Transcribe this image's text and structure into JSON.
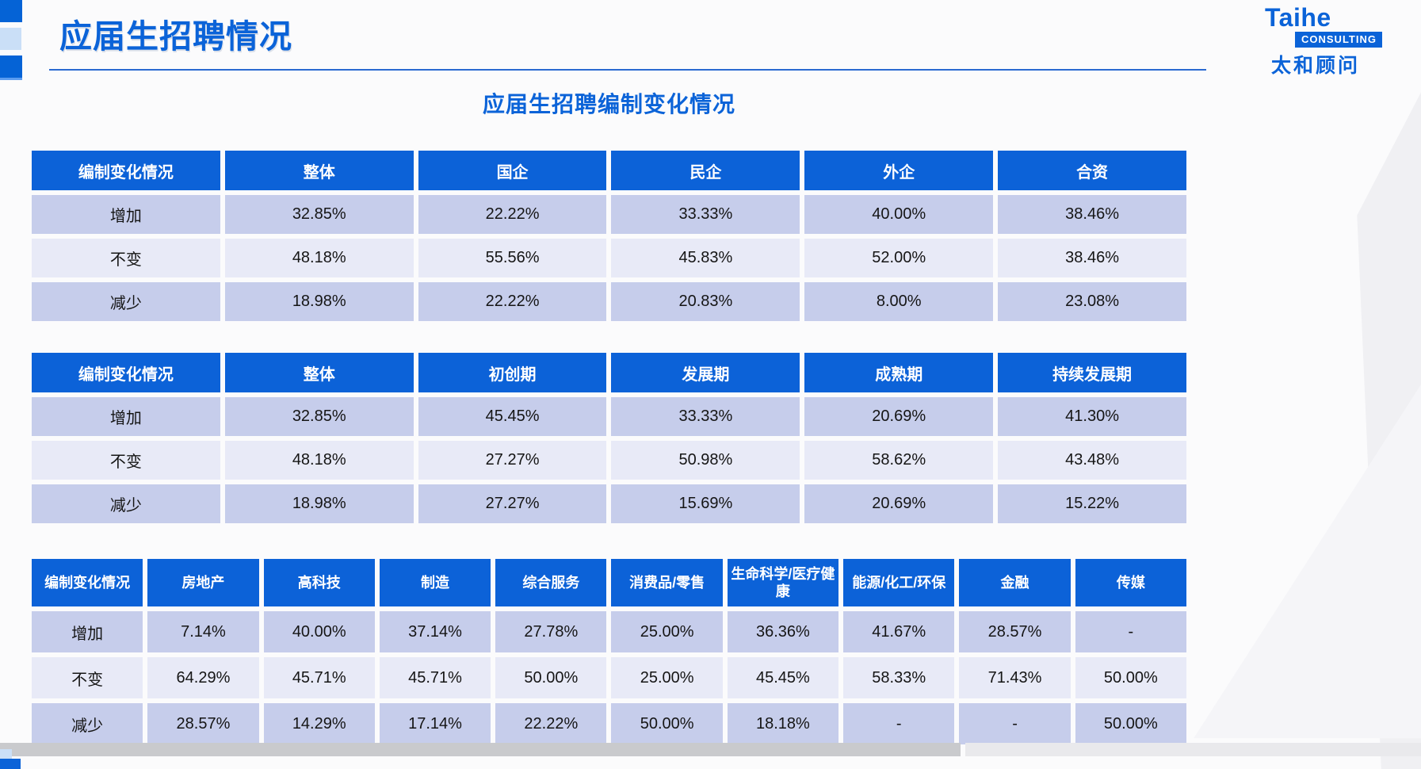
{
  "page": {
    "title": "应届生招聘情况",
    "subtitle": "应届生招聘编制变化情况"
  },
  "logo": {
    "name": "Taihe",
    "tagline": "CONSULTING",
    "cn": "太和顾问"
  },
  "colors": {
    "brand_blue": "#0b63d8",
    "table_header_bg": "#0c62d8",
    "row_dark": "#c6cdeb",
    "row_light": "#e8eaf7",
    "accent_light_blue": "#cadff7"
  },
  "tables": [
    {
      "name": "by-company-ownership",
      "headers": [
        "编制变化情况",
        "整体",
        "国企",
        "民企",
        "外企",
        "合资"
      ],
      "rows": [
        {
          "label": "增加",
          "values": [
            "32.85%",
            "22.22%",
            "33.33%",
            "40.00%",
            "38.46%"
          ]
        },
        {
          "label": "不变",
          "values": [
            "48.18%",
            "55.56%",
            "45.83%",
            "52.00%",
            "38.46%"
          ]
        },
        {
          "label": "减少",
          "values": [
            "18.98%",
            "22.22%",
            "20.83%",
            "8.00%",
            "23.08%"
          ]
        }
      ]
    },
    {
      "name": "by-company-stage",
      "headers": [
        "编制变化情况",
        "整体",
        "初创期",
        "发展期",
        "成熟期",
        "持续发展期"
      ],
      "rows": [
        {
          "label": "增加",
          "values": [
            "32.85%",
            "45.45%",
            "33.33%",
            "20.69%",
            "41.30%"
          ]
        },
        {
          "label": "不变",
          "values": [
            "48.18%",
            "27.27%",
            "50.98%",
            "58.62%",
            "43.48%"
          ]
        },
        {
          "label": "减少",
          "values": [
            "18.98%",
            "27.27%",
            "15.69%",
            "20.69%",
            "15.22%"
          ]
        }
      ]
    },
    {
      "name": "by-industry",
      "headers": [
        "编制变化情况",
        "房地产",
        "高科技",
        "制造",
        "综合服务",
        "消费品/零售",
        "生命科学/医疗健康",
        "能源/化工/环保",
        "金融",
        "传媒"
      ],
      "rows": [
        {
          "label": "增加",
          "values": [
            "7.14%",
            "40.00%",
            "37.14%",
            "27.78%",
            "25.00%",
            "36.36%",
            "41.67%",
            "28.57%",
            "-"
          ]
        },
        {
          "label": "不变",
          "values": [
            "64.29%",
            "45.71%",
            "45.71%",
            "50.00%",
            "25.00%",
            "45.45%",
            "58.33%",
            "71.43%",
            "50.00%"
          ]
        },
        {
          "label": "减少",
          "values": [
            "28.57%",
            "14.29%",
            "17.14%",
            "22.22%",
            "50.00%",
            "18.18%",
            "-",
            "-",
            "50.00%"
          ]
        }
      ]
    }
  ]
}
